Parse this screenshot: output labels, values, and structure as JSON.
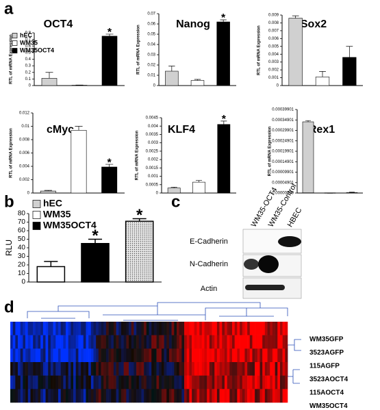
{
  "panel_labels": [
    "a",
    "b",
    "c",
    "d"
  ],
  "chart_data": [
    {
      "type": "bar",
      "title": "OCT4",
      "y_label": "RTL of mRNA Expression",
      "values": [
        0.11,
        0.005,
        0.75
      ],
      "errors": [
        0.09,
        0.003,
        0.03
      ],
      "colors": [
        "#d0d0d0",
        "#ffffff",
        "#000000"
      ],
      "ylim": [
        0,
        0.8
      ],
      "yticks": [
        0,
        0.1,
        0.2,
        0.3,
        0.4,
        0.5,
        0.6,
        0.7,
        0.8
      ],
      "legend": [
        {
          "name": "hEC",
          "color": "#d0d0d0"
        },
        {
          "name": "WM35",
          "color": "#ffffff"
        },
        {
          "name": "WM35OCT4",
          "color": "#000000"
        }
      ],
      "annotations": [
        {
          "text": "*",
          "bar": 2
        }
      ]
    },
    {
      "type": "bar",
      "title": "Nanog",
      "y_label": "RTL of mRNA Expression",
      "values": [
        0.014,
        0.005,
        0.062
      ],
      "errors": [
        0.005,
        0.001,
        0.002
      ],
      "colors": [
        "#d0d0d0",
        "#ffffff",
        "#000000"
      ],
      "ylim": [
        0,
        0.07
      ],
      "yticks": [
        0,
        0.01,
        0.02,
        0.03,
        0.04,
        0.05,
        0.06,
        0.07
      ],
      "annotations": [
        {
          "text": "*",
          "bar": 2
        }
      ]
    },
    {
      "type": "bar",
      "title": "Sox2",
      "y_label": "RTL of mRNA Expression",
      "values": [
        0.0086,
        0.0011,
        0.0036
      ],
      "errors": [
        0.0003,
        0.0007,
        0.0014
      ],
      "colors": [
        "#d0d0d0",
        "#ffffff",
        "#000000"
      ],
      "ylim": [
        0,
        0.009
      ],
      "yticks": [
        0,
        0.001,
        0.002,
        0.003,
        0.004,
        0.005,
        0.006,
        0.007,
        0.008,
        0.009
      ]
    },
    {
      "type": "bar",
      "title": "cMyc",
      "y_label": "RTL of mRNA Expression",
      "values": [
        0.0003,
        0.0094,
        0.0039
      ],
      "errors": [
        0.0001,
        0.0006,
        0.0004
      ],
      "colors": [
        "#d0d0d0",
        "#ffffff",
        "#000000"
      ],
      "ylim": [
        0,
        0.012
      ],
      "yticks": [
        0,
        0.002,
        0.004,
        0.006,
        0.008,
        0.01,
        0.012
      ],
      "annotations": [
        {
          "text": "*",
          "bar": 2
        }
      ]
    },
    {
      "type": "bar",
      "title": "KLF4",
      "y_label": "RTL of mRNA Expression",
      "values": [
        0.0003,
        0.00065,
        0.0041
      ],
      "errors": [
        5e-05,
        0.0001,
        0.0002
      ],
      "colors": [
        "#d0d0d0",
        "#ffffff",
        "#000000"
      ],
      "ylim": [
        0,
        0.0045
      ],
      "yticks": [
        0,
        0.0005,
        0.001,
        0.0015,
        0.002,
        0.0025,
        0.003,
        0.0035,
        0.004,
        0.0045
      ],
      "annotations": [
        {
          "text": "*",
          "bar": 2
        }
      ]
    },
    {
      "type": "bar",
      "title": "Rex1",
      "y_label": "RTL of mRNA Expression",
      "values": [
        0.00034,
        -9e-07,
        1e-06
      ],
      "errors": [
        6e-06,
        1e-06,
        2e-06
      ],
      "colors": [
        "#d0d0d0",
        "#ffffff",
        "#000000"
      ],
      "ylim": [
        -9.9e-07,
        0.00039901
      ],
      "yticks": [
        {
          "value": -9.9e-07,
          "label": "-0.00000099"
        },
        4.901e-05,
        9.901e-05,
        0.00014901,
        0.00019901,
        0.00024901,
        0.00029901,
        0.00034901,
        0.00039901
      ]
    },
    {
      "type": "bar",
      "y_label": "RLU",
      "values": [
        18,
        45,
        71
      ],
      "errors": [
        6,
        5,
        3
      ],
      "colors": [
        "#ffffff",
        "#000000",
        "#c8c8c8"
      ],
      "ylim": [
        0,
        80
      ],
      "yticks": [
        0,
        10,
        20,
        30,
        40,
        50,
        60,
        70,
        80
      ],
      "legend": [
        {
          "name": "hEC",
          "color": "#d0d0d0"
        },
        {
          "name": "WM35",
          "color": "#ffffff"
        },
        {
          "name": "WM35OCT4",
          "color": "#000000"
        }
      ],
      "annotations": [
        {
          "text": "*",
          "bar": 1
        },
        {
          "text": "*",
          "bar": 2
        }
      ]
    }
  ],
  "blot": {
    "columns": [
      "WM35-OCT4",
      "WM35-Control",
      "HBEC"
    ],
    "rows": [
      "E-Cadherin",
      "N-Cadherin",
      "Actin"
    ]
  },
  "heatmap": {
    "rows": [
      "WM35GFP",
      "3523AGFP",
      "115AGFP",
      "3523AOCT4",
      "115AOCT4",
      "WM35OCT4"
    ]
  }
}
